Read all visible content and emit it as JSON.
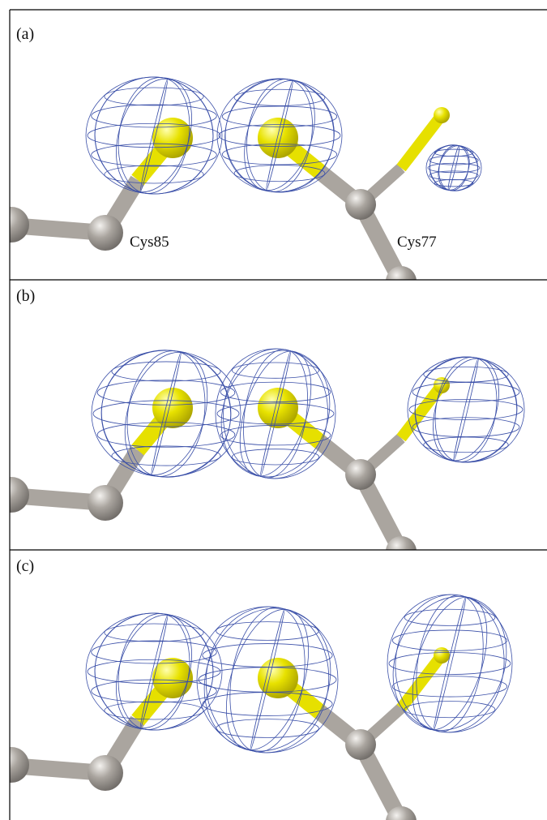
{
  "panels": [
    {
      "label": "(a)",
      "residue_labels": [
        "Cys85",
        "Cys77"
      ]
    },
    {
      "label": "(b)"
    },
    {
      "label": "(c)"
    }
  ]
}
